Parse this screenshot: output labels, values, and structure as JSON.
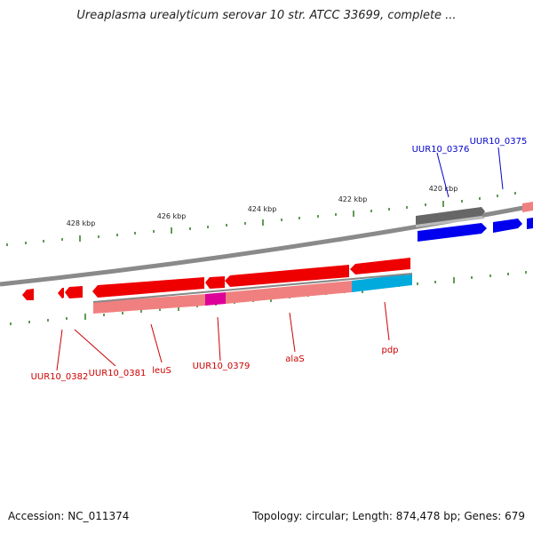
{
  "title": "Ureaplasma urealyticum serovar 10 str. ATCC 33699, complete ...",
  "accession_text": "Accession: NC_011374",
  "summary_text": "Topology: circular; Length: 874,478 bp; Genes: 679",
  "scale_labels": [
    "428 kbp",
    "426 kbp",
    "424 kbp",
    "422 kbp",
    "420 kbp"
  ],
  "gene_labels_forward": [
    "UUR10_0376",
    "UUR10_0375"
  ],
  "gene_labels_reverse": [
    "UUR10_0382",
    "UUR10_0381",
    "leuS",
    "UUR10_0379",
    "alaS",
    "pdp"
  ],
  "colors": {
    "forward_label": "#0000cc",
    "reverse_label": "#cc0000",
    "cds_forward": "#0000ee",
    "cds_reverse": "#ee0000",
    "gene_reverse": "#f08080",
    "gene_forward_other": "#666666",
    "cyan_feature": "#00aadd",
    "magenta_feature": "#dd0099",
    "tick": "#2a7a1a",
    "backbone": "#888888"
  }
}
